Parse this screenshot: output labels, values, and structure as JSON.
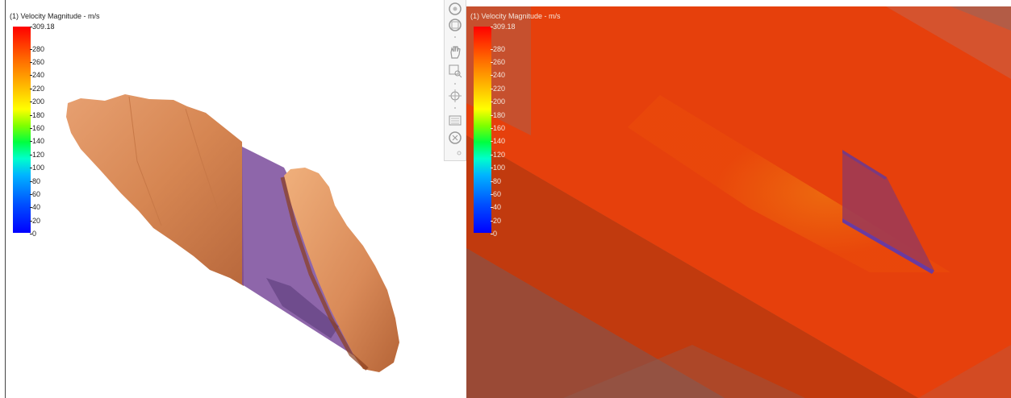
{
  "left_view": {
    "legend": {
      "title": "(1) Velocity Magnitude - m/s",
      "ticks": [
        "309.18",
        "280",
        "260",
        "240",
        "220",
        "200",
        "180",
        "160",
        "140",
        "120",
        "100",
        "80",
        "60",
        "40",
        "20",
        "0"
      ]
    }
  },
  "right_view": {
    "legend": {
      "title": "(1) Velocity Magnitude - m/s",
      "ticks": [
        "309.18",
        "280",
        "260",
        "240",
        "220",
        "200",
        "180",
        "160",
        "140",
        "120",
        "100",
        "80",
        "60",
        "40",
        "20",
        "0"
      ]
    }
  },
  "toolbar": {
    "icons": [
      "orbit-icon",
      "look-at-icon",
      "pan-icon",
      "zoom-window-icon",
      "zoom-icon",
      "fit-icon",
      "view-cube-icon",
      "settings-icon"
    ]
  },
  "colors": {
    "body_surface": "#d98a58",
    "plane": "#6c4a8e",
    "flow_field": "#e8430a",
    "background_flow": "#a04a30"
  }
}
